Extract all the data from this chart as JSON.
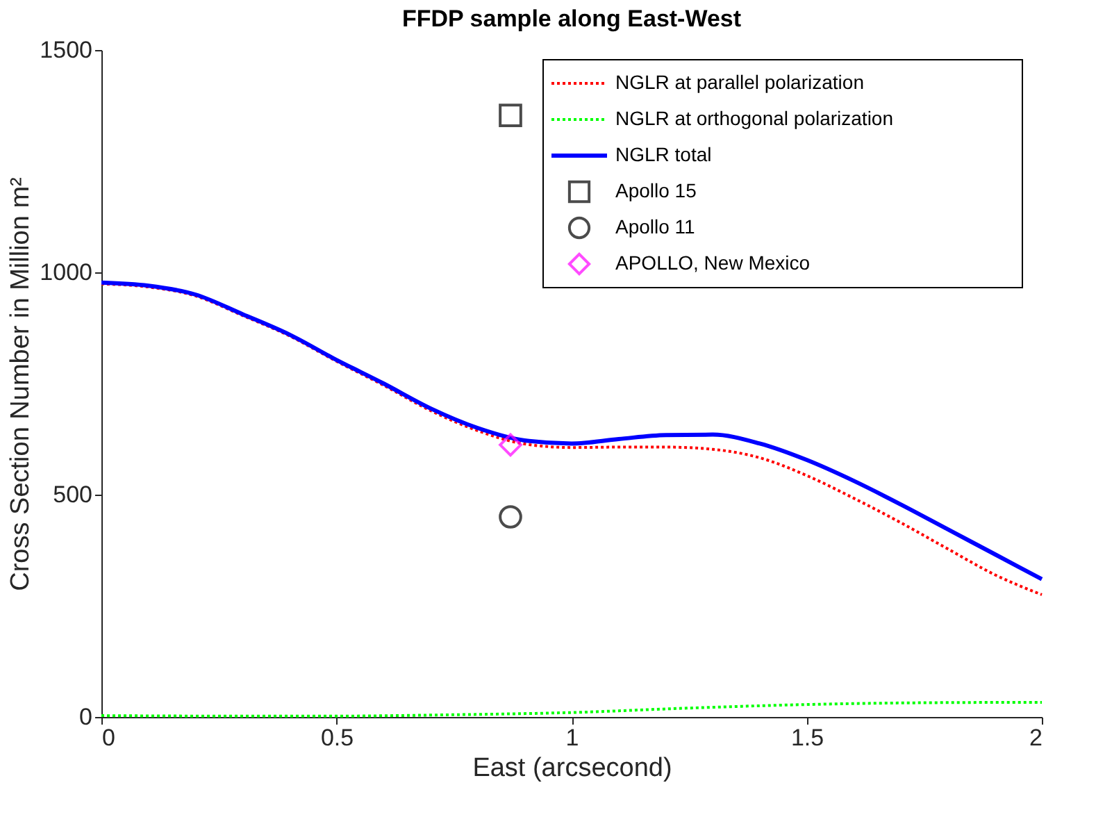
{
  "chart_data": {
    "type": "line",
    "title": "FFDP sample along East-West",
    "xlabel": "East (arcsecond)",
    "ylabel": "Cross Section Number in Million m²",
    "xlim": [
      0,
      2
    ],
    "xticks": [
      0,
      0.5,
      1,
      1.5,
      2
    ],
    "ylim": [
      0,
      1500
    ],
    "yticks": [
      0,
      500,
      1000,
      1500
    ],
    "grid": false,
    "legend": "top right",
    "series": [
      {
        "name": "NGLR at parallel polarization",
        "line_style": "dotted",
        "color": "#ff0000",
        "x": [
          0,
          0.1,
          0.2,
          0.3,
          0.4,
          0.5,
          0.6,
          0.7,
          0.8,
          0.9,
          1.0,
          1.1,
          1.2,
          1.3,
          1.4,
          1.5,
          1.6,
          1.7,
          1.8,
          1.9,
          2.0
        ],
        "values": [
          974,
          967,
          947,
          903,
          857,
          800,
          746,
          689,
          644,
          614,
          606,
          607,
          607,
          602,
          583,
          543,
          492,
          437,
          378,
          320,
          275
        ]
      },
      {
        "name": "NGLR at orthogonal polarization",
        "line_style": "dotted",
        "color": "#00ff00",
        "x": [
          0,
          0.25,
          0.5,
          0.75,
          1.0,
          1.25,
          1.5,
          1.75,
          2.0
        ],
        "values": [
          3,
          2,
          2,
          5,
          10,
          20,
          28,
          32,
          33
        ]
      },
      {
        "name": "NGLR total",
        "line_style": "solid",
        "color": "#0000ff",
        "x": [
          0,
          0.1,
          0.2,
          0.3,
          0.4,
          0.5,
          0.6,
          0.7,
          0.8,
          0.9,
          1.0,
          1.1,
          1.2,
          1.3,
          1.4,
          1.5,
          1.6,
          1.7,
          1.8,
          1.9,
          2.0
        ],
        "values": [
          977,
          970,
          950,
          906,
          860,
          803,
          750,
          694,
          650,
          622,
          615,
          625,
          634,
          635,
          615,
          578,
          531,
          478,
          422,
          366,
          310
        ]
      },
      {
        "name": "Apollo 15",
        "type": "scatter",
        "marker": "square",
        "color": "#000000",
        "x": [
          0.87
        ],
        "values": [
          1353
        ]
      },
      {
        "name": "Apollo 11",
        "type": "scatter",
        "marker": "circle",
        "color": "#000000",
        "x": [
          0.87
        ],
        "values": [
          450
        ]
      },
      {
        "name": "APOLLO, New Mexico",
        "type": "scatter",
        "marker": "diamond",
        "color": "#ff00ff",
        "x": [
          0.87
        ],
        "values": [
          612
        ]
      }
    ]
  }
}
